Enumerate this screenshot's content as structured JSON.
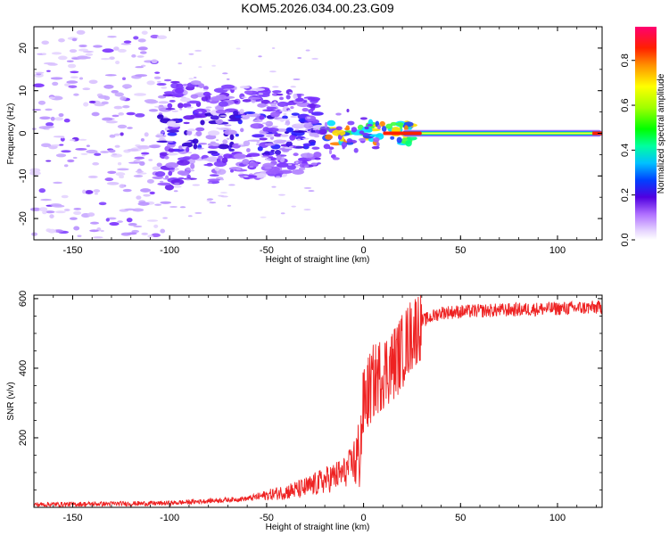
{
  "title": "KOM5.2026.034.00.23.G09",
  "chart_data": [
    {
      "type": "heatmap",
      "name": "spectrogram",
      "xlabel": "Height of straight line (km)",
      "ylabel": "Frequency (Hz)",
      "xlim": [
        -170,
        123
      ],
      "ylim": [
        -25,
        25
      ],
      "xticks": [
        -150,
        -100,
        -50,
        0,
        50,
        100
      ],
      "yticks": [
        -20,
        -10,
        0,
        10,
        20
      ],
      "xticklabels": [
        "-150",
        "-100",
        "-50",
        "0",
        "50",
        "100"
      ],
      "yticklabels": [
        "-20",
        "-10",
        "0",
        "10",
        "20"
      ],
      "colorbar": {
        "label": "Normalized spectral amplitude",
        "range": [
          0.0,
          0.95
        ],
        "ticks": [
          0.0,
          0.2,
          0.4,
          0.6,
          0.8
        ],
        "ticklabels": [
          "0.0",
          "0.2",
          "0.4",
          "0.6",
          "0.8"
        ]
      },
      "features": [
        {
          "region": "scattered noise",
          "x_range": [
            -170,
            -105
          ],
          "freq_spread_hz": 25,
          "amplitude": 0.1
        },
        {
          "region": "dense cluster",
          "x_range": [
            -105,
            -22
          ],
          "freq_spread_hz": 9,
          "amplitude": 0.25
        },
        {
          "region": "transition",
          "x_range": [
            -22,
            25
          ],
          "freq_spread_hz": 2,
          "amplitude": 0.55
        },
        {
          "region": "steady carrier",
          "x_range": [
            25,
            123
          ],
          "freq_center_hz": 0,
          "amplitude": 0.9
        }
      ]
    },
    {
      "type": "line",
      "name": "snr",
      "xlabel": "Height of straight line (km)",
      "ylabel": "SNR (v/v)",
      "xlim": [
        -170,
        123
      ],
      "ylim": [
        0,
        610
      ],
      "xticks": [
        -150,
        -100,
        -50,
        0,
        50,
        100
      ],
      "yticks": [
        200,
        400,
        600
      ],
      "xticklabels": [
        "-150",
        "-100",
        "-50",
        "0",
        "50",
        "100"
      ],
      "yticklabels": [
        "200",
        "400",
        "600"
      ],
      "color": "#ee2222",
      "profile": [
        {
          "x": -170,
          "y": 8
        },
        {
          "x": -100,
          "y": 12
        },
        {
          "x": -60,
          "y": 25
        },
        {
          "x": -30,
          "y": 55
        },
        {
          "x": -10,
          "y": 100
        },
        {
          "x": -2,
          "y": 150
        },
        {
          "x": 0,
          "y": 300
        },
        {
          "x": 5,
          "y": 360
        },
        {
          "x": 10,
          "y": 390
        },
        {
          "x": 15,
          "y": 410
        },
        {
          "x": 20,
          "y": 450
        },
        {
          "x": 25,
          "y": 500
        },
        {
          "x": 30,
          "y": 535
        },
        {
          "x": 40,
          "y": 560
        },
        {
          "x": 60,
          "y": 565
        },
        {
          "x": 90,
          "y": 570
        },
        {
          "x": 123,
          "y": 575
        }
      ]
    }
  ]
}
